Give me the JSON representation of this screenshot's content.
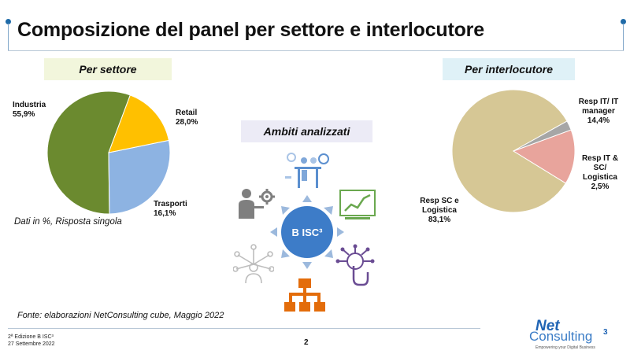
{
  "title": "Composizione del panel per settore e interlocutore",
  "sections": {
    "per_settore": "Per settore",
    "per_interlocutore": "Per interlocutore",
    "ambiti": "Ambiti analizzati"
  },
  "hub_label": "B ISC³",
  "note": "Dati in %, Risposta singola",
  "source": "Fonte: elaborazioni NetConsulting cube, Maggio 2022",
  "footer": {
    "line1": "2ª Edizione B ISC³",
    "line2": "27 Settembre 2022",
    "page": "2"
  },
  "logo": {
    "net": "Net",
    "consulting": "Consulting",
    "sup": "3",
    "tagline": "Empowering your Digital Business"
  },
  "icons": [
    "analytics-people-icon",
    "growth-chart-icon",
    "touch-network-icon",
    "org-chart-icon",
    "network-person-icon",
    "manager-gear-icon"
  ],
  "chart_data": [
    {
      "type": "pie",
      "title": "Per settore",
      "slices": [
        {
          "label": "Industria",
          "value": 55.9,
          "display": "55,9%",
          "color": "#6b8a2f"
        },
        {
          "label": "Retail",
          "value": 28.0,
          "display": "28,0%",
          "color": "#8db3e2"
        },
        {
          "label": "Trasporti",
          "value": 16.1,
          "display": "16,1%",
          "color": "#ffc000"
        }
      ]
    },
    {
      "type": "pie",
      "title": "Per interlocutore",
      "slices": [
        {
          "label": "Resp SC e Logistica",
          "value": 83.1,
          "display": "83,1%",
          "color": "#d6c795"
        },
        {
          "label": "Resp IT/ IT manager",
          "value": 14.4,
          "display": "14,4%",
          "color": "#e8a49c"
        },
        {
          "label": "Resp IT & SC/ Logistica",
          "value": 2.5,
          "display": "2,5%",
          "color": "#a6a6a6"
        }
      ]
    }
  ]
}
